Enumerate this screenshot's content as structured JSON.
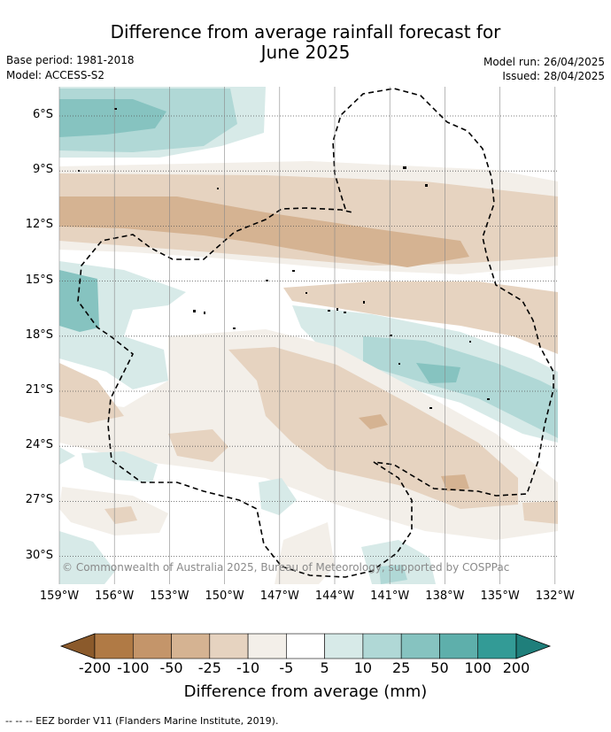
{
  "title": {
    "line1": "Difference from average rainfall forecast for",
    "line2": "June 2025"
  },
  "meta": {
    "base_period": "Base period: 1981-2018",
    "model": "Model: ACCESS-S2",
    "model_run": "Model run: 26/04/2025",
    "issued": "Issued: 28/04/2025"
  },
  "axes": {
    "lat_labels": [
      "6°S",
      "9°S",
      "12°S",
      "15°S",
      "18°S",
      "21°S",
      "24°S",
      "27°S",
      "30°S"
    ],
    "lon_labels": [
      "159°W",
      "156°W",
      "153°W",
      "150°W",
      "147°W",
      "144°W",
      "141°W",
      "138°W",
      "135°W",
      "132°W"
    ]
  },
  "copyright": "© Commonwealth of Australia 2025, Bureau of Meteorology, supported by COSPPac",
  "colorbar": {
    "ticks": [
      "-200",
      "-100",
      "-50",
      "-25",
      "-10",
      "-5",
      "5",
      "10",
      "25",
      "50",
      "100",
      "200"
    ],
    "colors": [
      "#8b5a2b",
      "#b07a45",
      "#c4956a",
      "#d5b392",
      "#e6d3c0",
      "#f3efe9",
      "#ffffff",
      "#d7eae8",
      "#b0d8d6",
      "#86c3c0",
      "#5eafab",
      "#339b96",
      "#1f7f7b"
    ],
    "title": "Difference from average (mm)"
  },
  "footer": "-- -- -- EEZ border V11 (Flanders Marine Institute, 2019)."
}
